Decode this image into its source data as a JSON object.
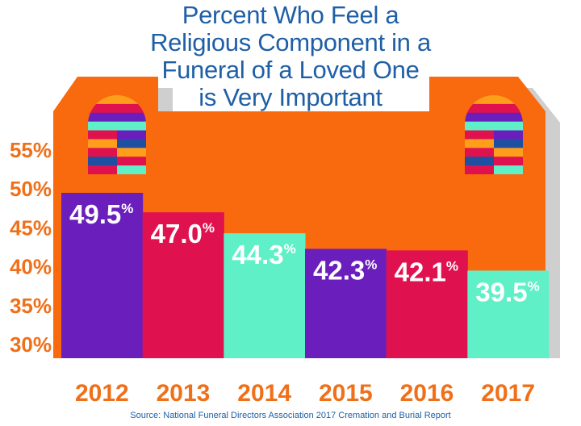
{
  "chart_data": {
    "type": "bar",
    "title_lines": [
      "Percent Who Feel a",
      "Religious Component in a",
      "Funeral of a Loved One",
      "is Very Important"
    ],
    "categories": [
      "2012",
      "2013",
      "2014",
      "2015",
      "2016",
      "2017"
    ],
    "values": [
      49.5,
      47.0,
      44.3,
      42.3,
      42.1,
      39.5
    ],
    "value_labels": [
      "49.5",
      "47.0",
      "44.3",
      "42.3",
      "42.1",
      "39.5"
    ],
    "value_suffix": "%",
    "y_ticks": [
      "30%",
      "35%",
      "40%",
      "45%",
      "50%",
      "55%"
    ],
    "ylim": [
      30,
      55
    ],
    "bar_colors": [
      "#6a1fbd",
      "#e0114f",
      "#5ff0c8",
      "#6a1fbd",
      "#e0114f",
      "#5ff0c8"
    ],
    "grid": false,
    "legend": "none",
    "source": "Source: National Funeral Directors Association 2017 Cremation and Burial Report"
  },
  "colors": {
    "background_shape": "#f96a0e",
    "shadow": "#cfcfcf",
    "title": "#1f5fa6",
    "tick_labels": "#f07019",
    "window_palette": [
      "#ff9e1a",
      "#e0114f",
      "#6a1fbd",
      "#5ff0c8",
      "#1f4fa0"
    ]
  },
  "decorations": [
    "church-building-shape",
    "stained-glass-window-left",
    "stained-glass-window-right"
  ]
}
